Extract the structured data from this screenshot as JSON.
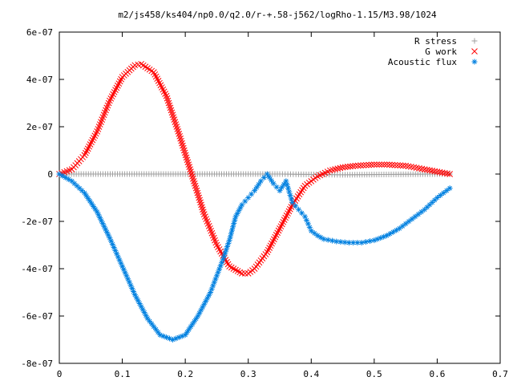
{
  "chart_data": {
    "type": "scatter",
    "title": "m2/js458/ks404/np0.0/q2.0/r-+.58-j562/logRho-1.15/M3.98/1024",
    "xlabel": "",
    "ylabel": "",
    "xlim": [
      0,
      0.7
    ],
    "ylim": [
      -8e-07,
      6e-07
    ],
    "x_ticks": [
      "0",
      "0.1",
      "0.2",
      "0.3",
      "0.4",
      "0.5",
      "0.6",
      "0.7"
    ],
    "x_tick_values": [
      0,
      0.1,
      0.2,
      0.3,
      0.4,
      0.5,
      0.6,
      0.7
    ],
    "y_ticks": [
      "6e-07",
      "4e-07",
      "2e-07",
      "0",
      "-2e-07",
      "-4e-07",
      "-6e-07",
      "-8e-07"
    ],
    "y_tick_values": [
      6e-07,
      4e-07,
      2e-07,
      0,
      -2e-07,
      -4e-07,
      -6e-07,
      -8e-07
    ],
    "grid": false,
    "legend_position": "top-right",
    "series": [
      {
        "name": "R stress",
        "marker": "+",
        "color": "#a0a0a0",
        "x": [
          0.0,
          0.05,
          0.1,
          0.15,
          0.2,
          0.25,
          0.3,
          0.35,
          0.38,
          0.42,
          0.45,
          0.5,
          0.55,
          0.6,
          0.62
        ],
        "y": [
          0,
          0,
          0,
          0,
          0,
          0,
          0,
          0,
          -1e-09,
          -2e-09,
          -3e-09,
          -2e-09,
          -1e-09,
          0,
          0
        ]
      },
      {
        "name": "G work",
        "marker": "x",
        "color": "#ff0000",
        "x": [
          0.0,
          0.02,
          0.04,
          0.06,
          0.08,
          0.1,
          0.12,
          0.13,
          0.15,
          0.17,
          0.19,
          0.21,
          0.23,
          0.25,
          0.27,
          0.29,
          0.3,
          0.31,
          0.33,
          0.35,
          0.37,
          0.39,
          0.41,
          0.43,
          0.45,
          0.47,
          0.5,
          0.52,
          0.55,
          0.58,
          0.6,
          0.62
        ],
        "y": [
          0,
          2e-08,
          8e-08,
          1.8e-07,
          3.1e-07,
          4.1e-07,
          4.6e-07,
          4.65e-07,
          4.3e-07,
          3.3e-07,
          1.7e-07,
          0,
          -1.7e-07,
          -3e-07,
          -3.9e-07,
          -4.2e-07,
          -4.2e-07,
          -4e-07,
          -3.3e-07,
          -2.3e-07,
          -1.3e-07,
          -5e-08,
          -1e-08,
          1.5e-08,
          2.8e-08,
          3.5e-08,
          4e-08,
          4e-08,
          3.5e-08,
          2e-08,
          1e-08,
          0
        ]
      },
      {
        "name": "Acoustic flux",
        "marker": "*",
        "color": "#0080e0",
        "x": [
          0.0,
          0.02,
          0.04,
          0.06,
          0.08,
          0.1,
          0.12,
          0.14,
          0.16,
          0.18,
          0.2,
          0.22,
          0.24,
          0.25,
          0.26,
          0.27,
          0.28,
          0.29,
          0.3,
          0.31,
          0.32,
          0.33,
          0.34,
          0.35,
          0.36,
          0.37,
          0.38,
          0.39,
          0.4,
          0.41,
          0.42,
          0.44,
          0.46,
          0.48,
          0.5,
          0.52,
          0.54,
          0.56,
          0.58,
          0.6,
          0.62
        ],
        "y": [
          0,
          -3e-08,
          -8e-08,
          -1.6e-07,
          -2.7e-07,
          -3.9e-07,
          -5.1e-07,
          -6.1e-07,
          -6.8e-07,
          -7e-07,
          -6.8e-07,
          -6e-07,
          -5e-07,
          -4.3e-07,
          -3.6e-07,
          -2.8e-07,
          -1.8e-07,
          -1.3e-07,
          -1e-07,
          -7e-08,
          -3e-08,
          0,
          -4e-08,
          -7e-08,
          -3e-08,
          -1.2e-07,
          -1.5e-07,
          -1.8e-07,
          -2.4e-07,
          -2.6e-07,
          -2.75e-07,
          -2.85e-07,
          -2.9e-07,
          -2.9e-07,
          -2.8e-07,
          -2.6e-07,
          -2.3e-07,
          -1.9e-07,
          -1.5e-07,
          -1e-07,
          -6e-08
        ]
      }
    ]
  }
}
